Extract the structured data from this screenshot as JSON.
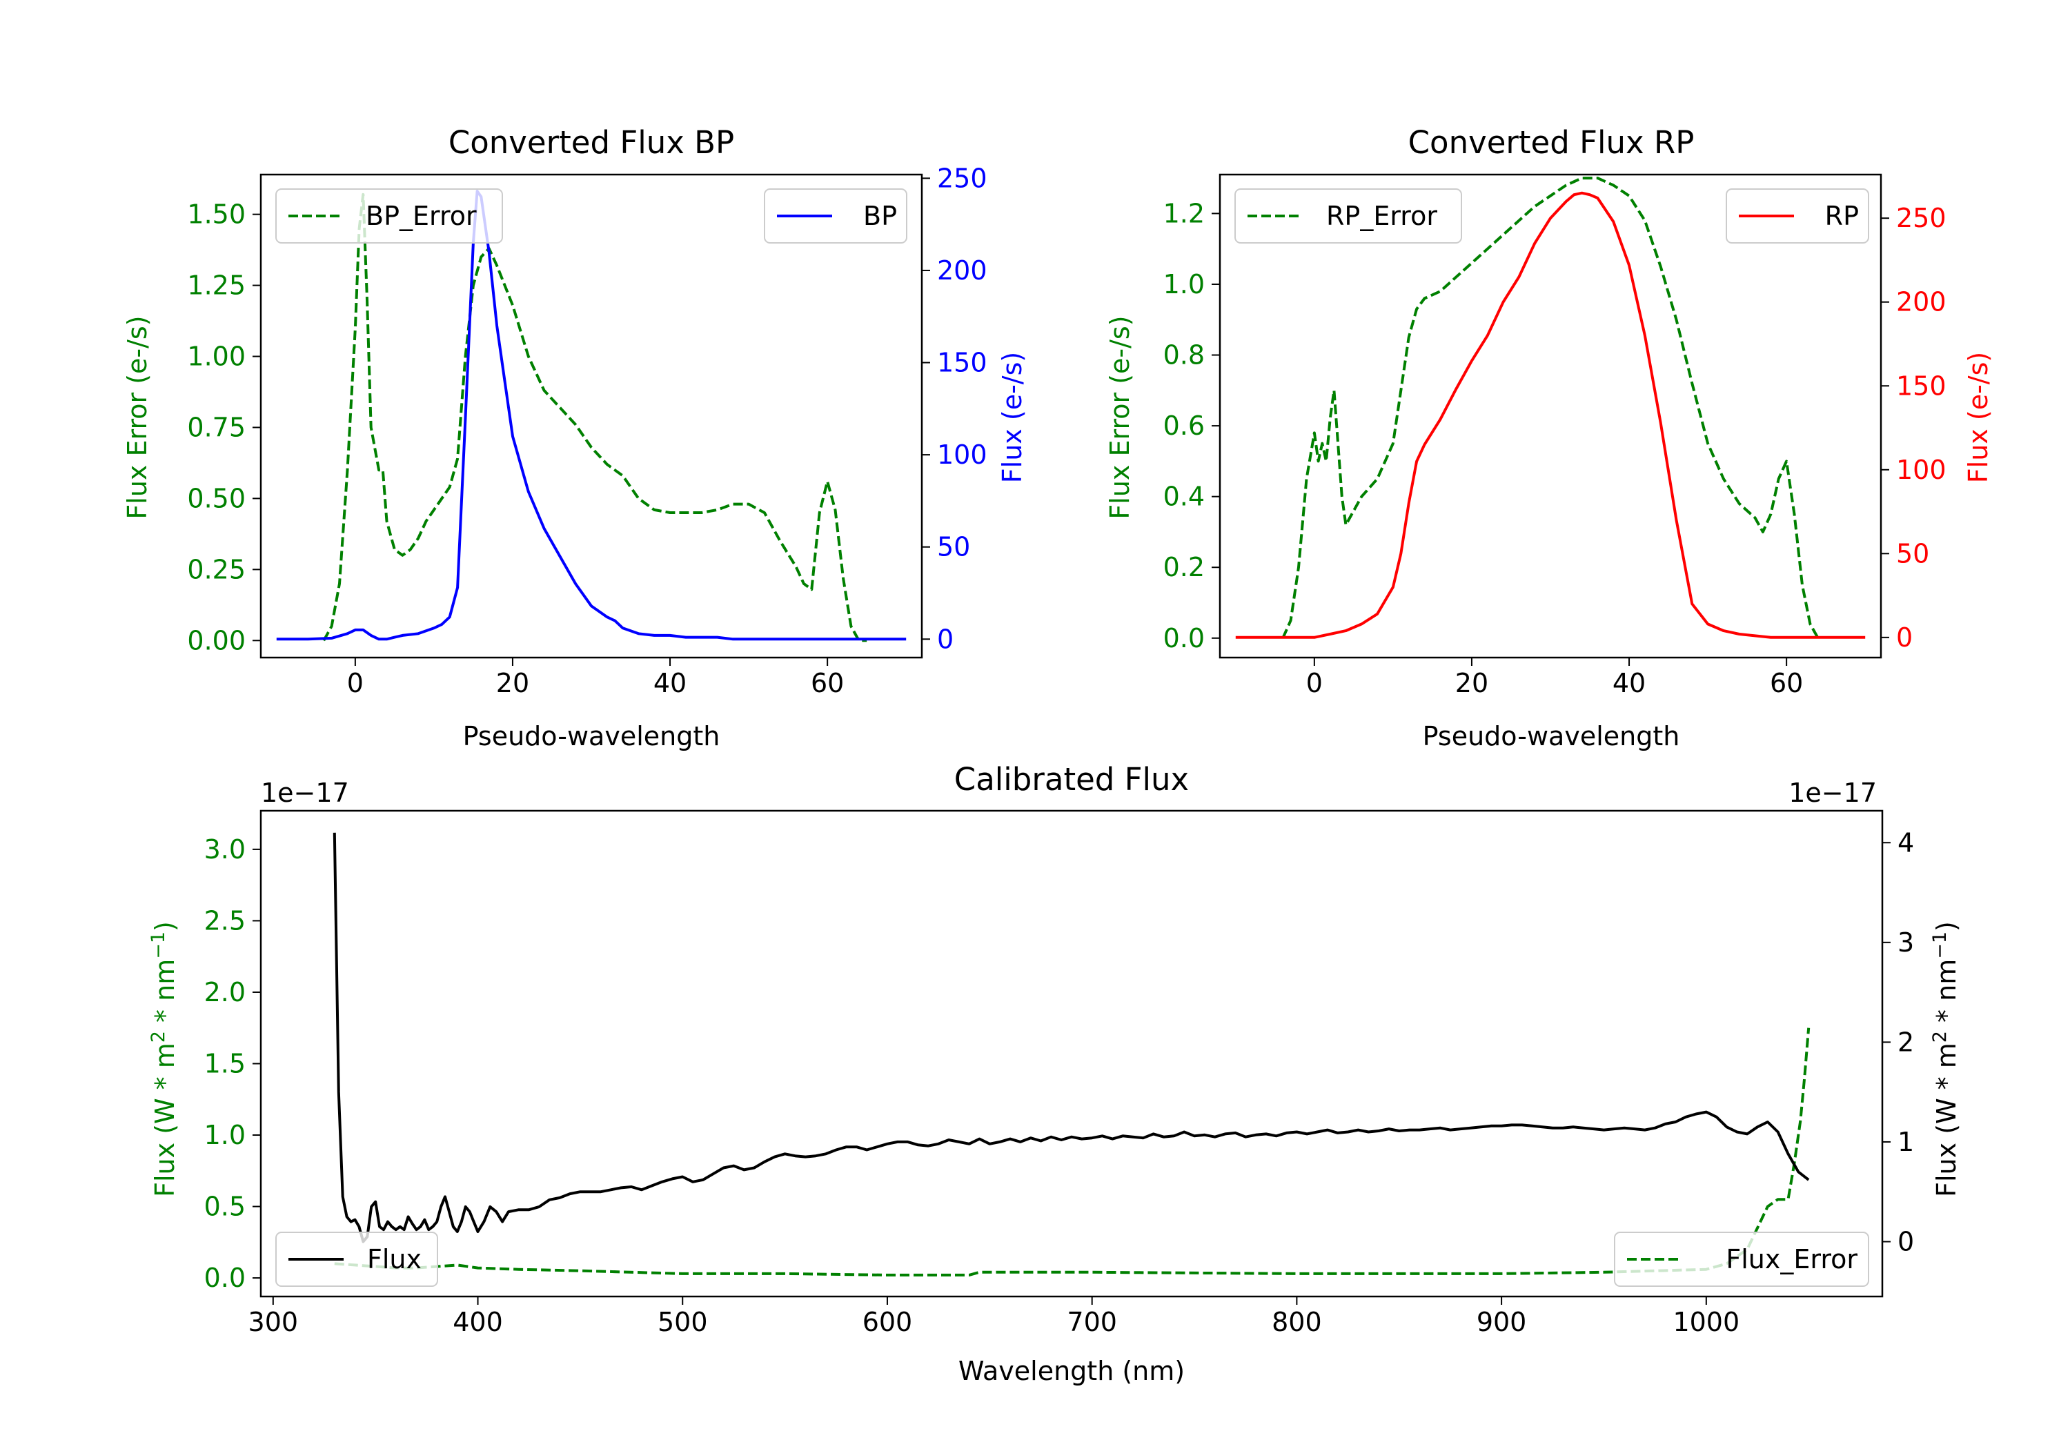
{
  "chart_data": [
    {
      "id": "bp",
      "type": "line",
      "title": "Converted Flux BP",
      "xlabel": "Pseudo-wavelength",
      "ylabel_left": "Flux Error (e-/s)",
      "ylabel_right": "Flux (e-/s)",
      "xlim": [
        -12,
        72
      ],
      "ylim_left": [
        -0.06,
        1.64
      ],
      "ylim_right": [
        -10,
        252
      ],
      "xticks": [
        0,
        20,
        40,
        60
      ],
      "yticks_left": [
        "0.00",
        "0.25",
        "0.50",
        "0.75",
        "1.00",
        "1.25",
        "1.50"
      ],
      "yticks_right": [
        "0",
        "50",
        "100",
        "150",
        "200",
        "250"
      ],
      "colors": {
        "error": "#008000",
        "flux": "#0000ff",
        "left_axis": "#008000",
        "right_axis": "#0000ff"
      },
      "legend_left": "BP_Error",
      "legend_right": "BP",
      "error_series": {
        "name": "BP_Error",
        "x": [
          -4,
          -3,
          -2,
          -1,
          0,
          0.5,
          1,
          1.5,
          2,
          3,
          3.5,
          4,
          5,
          6,
          7,
          8,
          9,
          10,
          12,
          13,
          14,
          15,
          16,
          17,
          18,
          20,
          22,
          24,
          26,
          28,
          30,
          32,
          34,
          36,
          38,
          40,
          42,
          44,
          46,
          48,
          50,
          52,
          54,
          56,
          57,
          58,
          59,
          60,
          61,
          62,
          63,
          64,
          65
        ],
        "y": [
          0.0,
          0.05,
          0.2,
          0.6,
          1.1,
          1.45,
          1.57,
          1.2,
          0.75,
          0.6,
          0.6,
          0.42,
          0.32,
          0.3,
          0.32,
          0.36,
          0.42,
          0.46,
          0.54,
          0.64,
          1.0,
          1.25,
          1.35,
          1.38,
          1.32,
          1.18,
          1.0,
          0.88,
          0.82,
          0.76,
          0.68,
          0.62,
          0.58,
          0.5,
          0.46,
          0.45,
          0.45,
          0.45,
          0.46,
          0.48,
          0.48,
          0.45,
          0.35,
          0.26,
          0.2,
          0.18,
          0.45,
          0.56,
          0.46,
          0.22,
          0.05,
          0.0,
          0.0
        ]
      },
      "flux_series": {
        "name": "BP",
        "x": [
          -10,
          -6,
          -3,
          -1,
          0,
          1,
          2,
          3,
          4,
          5,
          6,
          8,
          10,
          11,
          12,
          13,
          14,
          15,
          15.5,
          16,
          17,
          18,
          19,
          20,
          22,
          24,
          26,
          28,
          30,
          32,
          33,
          34,
          36,
          38,
          40,
          42,
          44,
          46,
          48,
          50,
          55,
          60,
          65,
          70
        ],
        "y": [
          0,
          0,
          0.5,
          3,
          5,
          5,
          2,
          0,
          0,
          1,
          2,
          3,
          6,
          8,
          12,
          28,
          120,
          215,
          243,
          240,
          210,
          170,
          140,
          110,
          80,
          60,
          45,
          30,
          18,
          12,
          10,
          6,
          3,
          2,
          2,
          1,
          1,
          1,
          0,
          0,
          0,
          0,
          0,
          0
        ]
      }
    },
    {
      "id": "rp",
      "type": "line",
      "title": "Converted Flux RP",
      "xlabel": "Pseudo-wavelength",
      "ylabel_left": "Flux Error (e-/s)",
      "ylabel_right": "Flux (e-/s)",
      "xlim": [
        -12,
        72
      ],
      "ylim_left": [
        -0.055,
        1.31
      ],
      "ylim_right": [
        -12,
        276
      ],
      "xticks": [
        0,
        20,
        40,
        60
      ],
      "yticks_left": [
        "0.0",
        "0.2",
        "0.4",
        "0.6",
        "0.8",
        "1.0",
        "1.2"
      ],
      "yticks_right": [
        "0",
        "50",
        "100",
        "150",
        "200",
        "250"
      ],
      "colors": {
        "error": "#008000",
        "flux": "#ff0000",
        "left_axis": "#008000",
        "right_axis": "#ff0000"
      },
      "legend_left": "RP_Error",
      "legend_right": "RP",
      "error_series": {
        "name": "RP_Error",
        "x": [
          -4,
          -3,
          -2,
          -1,
          0,
          0.5,
          1,
          1.5,
          2,
          2.5,
          3,
          3.5,
          4,
          5,
          6,
          8,
          10,
          11,
          12,
          13,
          14,
          16,
          18,
          20,
          22,
          24,
          26,
          28,
          30,
          32,
          34,
          36,
          38,
          40,
          42,
          44,
          46,
          48,
          50,
          52,
          54,
          56,
          57,
          58,
          59,
          60,
          61,
          62,
          63,
          64
        ],
        "y": [
          0.0,
          0.05,
          0.2,
          0.45,
          0.58,
          0.5,
          0.55,
          0.5,
          0.62,
          0.7,
          0.55,
          0.4,
          0.32,
          0.36,
          0.4,
          0.45,
          0.55,
          0.7,
          0.85,
          0.93,
          0.96,
          0.98,
          1.02,
          1.06,
          1.1,
          1.14,
          1.18,
          1.22,
          1.25,
          1.28,
          1.3,
          1.3,
          1.28,
          1.25,
          1.18,
          1.05,
          0.9,
          0.72,
          0.55,
          0.45,
          0.38,
          0.34,
          0.3,
          0.35,
          0.45,
          0.5,
          0.35,
          0.15,
          0.04,
          0.0
        ]
      },
      "flux_series": {
        "name": "RP",
        "x": [
          -10,
          -5,
          0,
          2,
          4,
          6,
          8,
          10,
          11,
          12,
          13,
          14,
          16,
          18,
          20,
          22,
          24,
          26,
          28,
          30,
          31,
          32,
          33,
          34,
          35,
          36,
          38,
          40,
          42,
          44,
          46,
          48,
          50,
          52,
          54,
          56,
          58,
          60,
          65,
          70
        ],
        "y": [
          0,
          0,
          0,
          2,
          4,
          8,
          14,
          30,
          50,
          80,
          105,
          115,
          130,
          148,
          165,
          180,
          200,
          215,
          235,
          250,
          255,
          260,
          264,
          265,
          264,
          262,
          248,
          222,
          180,
          128,
          70,
          20,
          8,
          4,
          2,
          1,
          0,
          0,
          0,
          0
        ]
      }
    },
    {
      "id": "calibrated",
      "type": "line",
      "title": "Calibrated Flux",
      "xlabel": "Wavelength (nm)",
      "ylabel_left": "Flux (W * m",
      "ylabel_right": "Flux (W * m",
      "ylabel_sup_a": "2",
      "ylabel_mid": " * nm",
      "ylabel_sup_b": "−1",
      "ylabel_end": ")",
      "offset_left": "1e−17",
      "offset_right": "1e−17",
      "xlim": [
        294,
        1086
      ],
      "ylim_left": [
        -0.13,
        3.27
      ],
      "ylim_right": [
        -0.55,
        4.32
      ],
      "xticks": [
        300,
        400,
        500,
        600,
        700,
        800,
        900,
        1000
      ],
      "yticks_left": [
        "0.0",
        "0.5",
        "1.0",
        "1.5",
        "2.0",
        "2.5",
        "3.0"
      ],
      "yticks_right": [
        "0",
        "1",
        "2",
        "3",
        "4"
      ],
      "colors": {
        "flux": "#000000",
        "error": "#008000",
        "left_axis": "#008000",
        "right_axis": "#000000"
      },
      "legend_left": "Flux",
      "legend_right": "Flux_Error",
      "flux_series": {
        "name": "Flux",
        "x": [
          330,
          332,
          334,
          336,
          338,
          340,
          342,
          344,
          346,
          348,
          350,
          352,
          354,
          356,
          358,
          360,
          362,
          364,
          366,
          368,
          370,
          372,
          374,
          376,
          378,
          380,
          382,
          384,
          386,
          388,
          390,
          392,
          394,
          396,
          398,
          400,
          403,
          406,
          409,
          412,
          415,
          420,
          425,
          430,
          435,
          440,
          445,
          450,
          455,
          460,
          465,
          470,
          475,
          480,
          485,
          490,
          495,
          500,
          505,
          510,
          515,
          520,
          525,
          530,
          535,
          540,
          545,
          550,
          555,
          560,
          565,
          570,
          575,
          580,
          585,
          590,
          595,
          600,
          605,
          610,
          615,
          620,
          625,
          630,
          635,
          640,
          645,
          650,
          655,
          660,
          665,
          670,
          675,
          680,
          685,
          690,
          695,
          700,
          705,
          710,
          715,
          720,
          725,
          730,
          735,
          740,
          745,
          750,
          755,
          760,
          765,
          770,
          775,
          780,
          785,
          790,
          795,
          800,
          805,
          810,
          815,
          820,
          825,
          830,
          835,
          840,
          845,
          850,
          855,
          860,
          865,
          870,
          875,
          880,
          885,
          890,
          895,
          900,
          905,
          910,
          915,
          920,
          925,
          930,
          935,
          940,
          945,
          950,
          955,
          960,
          965,
          970,
          975,
          980,
          985,
          990,
          995,
          1000,
          1005,
          1010,
          1015,
          1020,
          1025,
          1030,
          1035,
          1040,
          1045,
          1050
        ],
        "y": [
          4.1,
          1.5,
          0.45,
          0.25,
          0.2,
          0.22,
          0.15,
          0.0,
          0.05,
          0.35,
          0.4,
          0.15,
          0.12,
          0.2,
          0.15,
          0.12,
          0.15,
          0.12,
          0.25,
          0.18,
          0.12,
          0.15,
          0.22,
          0.12,
          0.15,
          0.2,
          0.35,
          0.45,
          0.3,
          0.15,
          0.1,
          0.2,
          0.35,
          0.3,
          0.2,
          0.1,
          0.2,
          0.35,
          0.3,
          0.2,
          0.3,
          0.32,
          0.32,
          0.35,
          0.42,
          0.44,
          0.48,
          0.5,
          0.5,
          0.5,
          0.52,
          0.54,
          0.55,
          0.52,
          0.56,
          0.6,
          0.63,
          0.65,
          0.6,
          0.62,
          0.68,
          0.74,
          0.76,
          0.72,
          0.74,
          0.8,
          0.85,
          0.88,
          0.86,
          0.85,
          0.86,
          0.88,
          0.92,
          0.95,
          0.95,
          0.92,
          0.95,
          0.98,
          1.0,
          1.0,
          0.97,
          0.96,
          0.98,
          1.02,
          1.0,
          0.98,
          1.03,
          0.98,
          1.0,
          1.03,
          1.0,
          1.04,
          1.01,
          1.05,
          1.02,
          1.05,
          1.03,
          1.04,
          1.06,
          1.03,
          1.06,
          1.05,
          1.04,
          1.08,
          1.05,
          1.06,
          1.1,
          1.06,
          1.07,
          1.05,
          1.08,
          1.09,
          1.05,
          1.07,
          1.08,
          1.06,
          1.09,
          1.1,
          1.08,
          1.1,
          1.12,
          1.09,
          1.1,
          1.12,
          1.1,
          1.11,
          1.13,
          1.11,
          1.12,
          1.12,
          1.13,
          1.14,
          1.12,
          1.13,
          1.14,
          1.15,
          1.16,
          1.16,
          1.17,
          1.17,
          1.16,
          1.15,
          1.14,
          1.14,
          1.15,
          1.14,
          1.13,
          1.12,
          1.13,
          1.14,
          1.13,
          1.12,
          1.14,
          1.18,
          1.2,
          1.25,
          1.28,
          1.3,
          1.25,
          1.15,
          1.1,
          1.08,
          1.15,
          1.2,
          1.1,
          0.88,
          0.7,
          0.62
        ]
      },
      "error_series": {
        "name": "Flux_Error",
        "x": [
          330,
          340,
          350,
          360,
          370,
          380,
          390,
          400,
          420,
          450,
          500,
          550,
          600,
          640,
          645,
          700,
          800,
          900,
          950,
          1000,
          1010,
          1020,
          1025,
          1030,
          1035,
          1040,
          1043,
          1046,
          1048,
          1050
        ],
        "y": [
          0.1,
          0.09,
          0.08,
          0.07,
          0.07,
          0.08,
          0.09,
          0.07,
          0.06,
          0.05,
          0.03,
          0.03,
          0.02,
          0.02,
          0.04,
          0.04,
          0.03,
          0.03,
          0.04,
          0.06,
          0.1,
          0.2,
          0.35,
          0.5,
          0.55,
          0.55,
          0.8,
          1.1,
          1.4,
          1.75
        ]
      }
    }
  ]
}
